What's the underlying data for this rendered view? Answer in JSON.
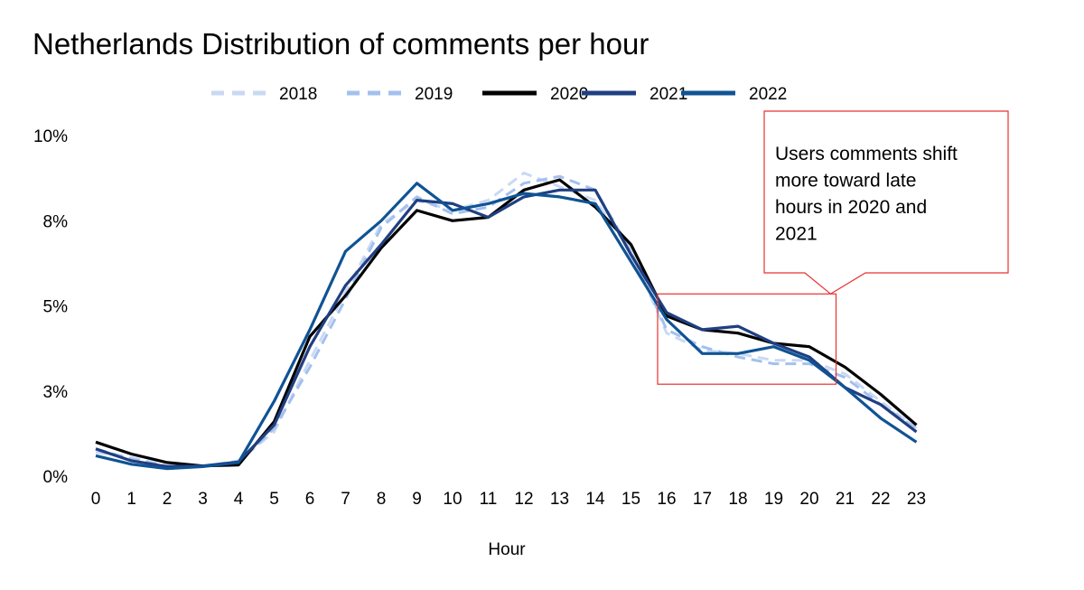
{
  "chart_data": {
    "type": "line",
    "title": "Netherlands Distribution of comments per hour",
    "xlabel": "Hour",
    "ylabel": "",
    "x": [
      0,
      1,
      2,
      3,
      4,
      5,
      6,
      7,
      8,
      9,
      10,
      11,
      12,
      13,
      14,
      15,
      16,
      17,
      18,
      19,
      20,
      21,
      22,
      23
    ],
    "y_ticks": [
      "0%",
      "3%",
      "5%",
      "8%",
      "10%"
    ],
    "ylim": [
      0,
      10
    ],
    "grid": false,
    "legend_position": "top",
    "series": [
      {
        "name": "2018",
        "color": "#c9d9f3",
        "dash": "dashed",
        "values": [
          0.7,
          0.55,
          0.3,
          0.28,
          0.45,
          1.3,
          3.4,
          5.4,
          7.4,
          8.1,
          7.8,
          8.1,
          8.9,
          8.5,
          8.1,
          6.6,
          4.2,
          3.7,
          3.6,
          3.4,
          3.4,
          3.0,
          2.2,
          1.4
        ]
      },
      {
        "name": "2019",
        "color": "#a3c0ee",
        "dash": "dashed",
        "values": [
          0.8,
          0.5,
          0.3,
          0.28,
          0.4,
          1.4,
          3.2,
          5.2,
          7.3,
          8.2,
          7.7,
          7.9,
          8.6,
          8.8,
          8.4,
          6.6,
          4.3,
          3.8,
          3.5,
          3.3,
          3.3,
          2.9,
          2.1,
          1.4
        ]
      },
      {
        "name": "2020",
        "color": "#000000",
        "dash": "solid",
        "values": [
          1.0,
          0.65,
          0.4,
          0.3,
          0.33,
          1.6,
          4.1,
          5.3,
          6.7,
          7.8,
          7.5,
          7.6,
          8.4,
          8.7,
          7.9,
          6.8,
          4.7,
          4.3,
          4.2,
          3.9,
          3.8,
          3.2,
          2.4,
          1.5
        ]
      },
      {
        "name": "2021",
        "color": "#203f82",
        "dash": "solid",
        "values": [
          0.8,
          0.45,
          0.28,
          0.3,
          0.42,
          1.5,
          3.8,
          5.6,
          6.8,
          8.1,
          8.0,
          7.6,
          8.2,
          8.4,
          8.4,
          6.5,
          4.8,
          4.3,
          4.4,
          3.9,
          3.5,
          2.6,
          2.1,
          1.3
        ]
      },
      {
        "name": "2022",
        "color": "#0f5394",
        "dash": "solid",
        "values": [
          0.6,
          0.35,
          0.22,
          0.28,
          0.4,
          2.2,
          4.3,
          6.6,
          7.5,
          8.6,
          7.8,
          8.0,
          8.3,
          8.2,
          8.0,
          6.3,
          4.6,
          3.6,
          3.6,
          3.8,
          3.4,
          2.6,
          1.7,
          1.0
        ]
      }
    ],
    "annotation": {
      "text": "Users comments shift more toward late hours in 2020 and 2021",
      "lines": [
        "Users comments shift",
        "more toward late",
        "hours in 2020 and",
        "2021"
      ],
      "highlight_range": {
        "x": [
          16,
          21
        ],
        "y": [
          2.7,
          5.35
        ]
      },
      "color": "#e8312f"
    }
  }
}
